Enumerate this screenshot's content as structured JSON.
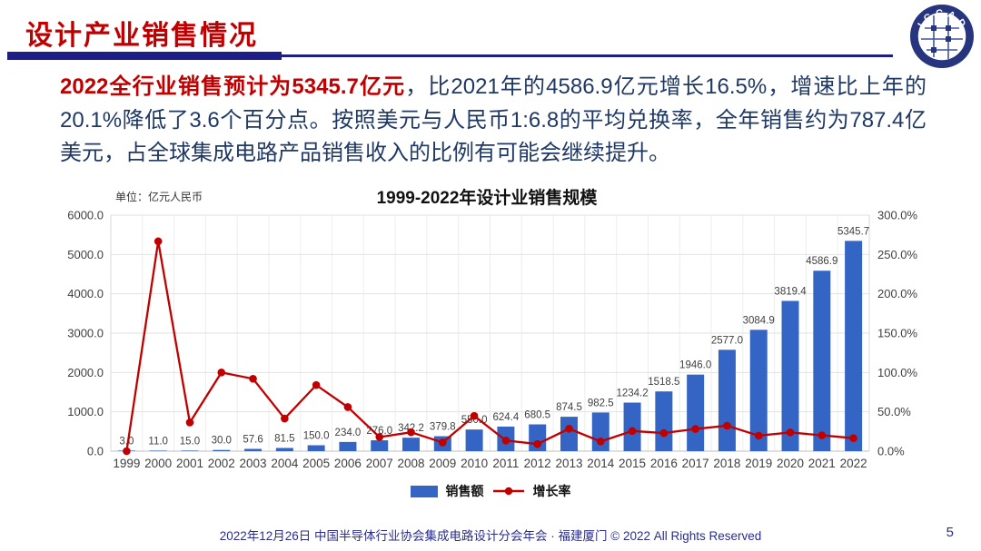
{
  "header": {
    "title": "设计产业销售情况"
  },
  "logo": {
    "label": "ICCAD"
  },
  "paragraph": {
    "highlight": "2022全行业销售预计为5345.7亿元",
    "rest": "，比2021年的4586.9亿元增长16.5%，增速比上年的20.1%降低了3.6个百分点。按照美元与人民币1:6.8的平均兑换率，全年销售约为787.4亿美元，占全球集成电路产品销售收入的比例有可能会继续提升。"
  },
  "chart_data": {
    "type": "bar+line",
    "title": "1999-2022年设计业销售规模",
    "unit_label": "单位：亿元人民币",
    "categories": [
      "1999",
      "2000",
      "2001",
      "2002",
      "2003",
      "2004",
      "2005",
      "2006",
      "2007",
      "2008",
      "2009",
      "2010",
      "2011",
      "2012",
      "2013",
      "2014",
      "2015",
      "2016",
      "2017",
      "2018",
      "2019",
      "2020",
      "2021",
      "2022"
    ],
    "series": [
      {
        "name": "销售额",
        "type": "bar",
        "axis": "left",
        "color": "#3565C4",
        "values": [
          3.0,
          11.0,
          15.0,
          30.0,
          57.6,
          81.5,
          150.0,
          234.0,
          276.0,
          342.2,
          379.8,
          550.0,
          624.4,
          680.5,
          874.5,
          982.5,
          1234.2,
          1518.5,
          1946.0,
          2577.0,
          3084.9,
          3819.4,
          4586.9,
          5345.7
        ]
      },
      {
        "name": "增长率",
        "type": "line",
        "axis": "right",
        "color": "#C00000",
        "values_pct": [
          0.0,
          266.7,
          36.4,
          100.0,
          92.0,
          41.5,
          84.0,
          56.0,
          17.9,
          24.0,
          11.0,
          44.8,
          13.5,
          9.0,
          28.5,
          12.3,
          25.6,
          23.0,
          28.2,
          32.4,
          19.7,
          23.8,
          20.1,
          16.5
        ]
      }
    ],
    "left_axis": {
      "min": 0,
      "max": 6000,
      "step": 1000,
      "tick_suffix": ""
    },
    "right_axis": {
      "min": 0,
      "max": 300,
      "step": 50,
      "tick_suffix": "%"
    },
    "grid": true,
    "legend_position": "bottom",
    "data_labels_on": "bars"
  },
  "footer": {
    "text": "2022年12月26日 中国半导体行业协会集成电路设计分会年会 · 福建厦门 © 2022 All Rights Reserved",
    "page": "5"
  }
}
